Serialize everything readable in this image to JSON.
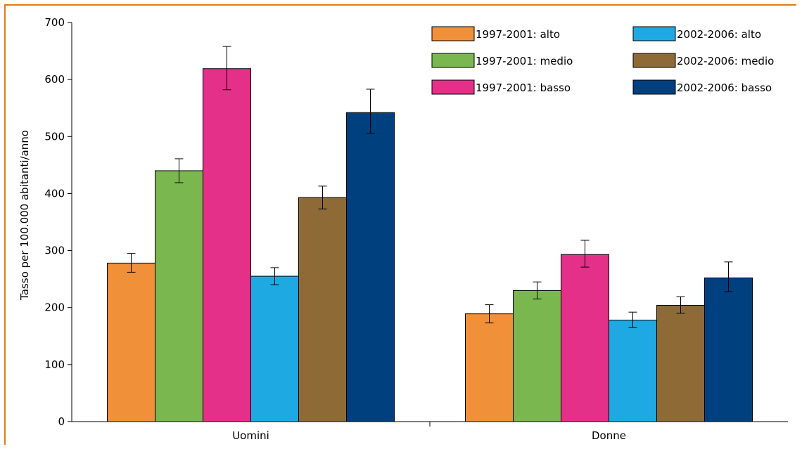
{
  "chart_data": {
    "type": "bar",
    "title": "",
    "xlabel": "",
    "ylabel": "Tasso per 100.000 abitanti/anno",
    "ylim": [
      0,
      700
    ],
    "yticks": [
      0,
      100,
      200,
      300,
      400,
      500,
      600,
      700
    ],
    "categories": [
      "Uomini",
      "Donne"
    ],
    "legend_position": "top-right",
    "grid": false,
    "series": [
      {
        "name": "1997-2001: alto",
        "color": "#f0913a",
        "values": [
          278,
          189
        ],
        "err_low": [
          262,
          173
        ],
        "err_high": [
          295,
          205
        ]
      },
      {
        "name": "1997-2001: medio",
        "color": "#7ab84f",
        "values": [
          440,
          230
        ],
        "err_low": [
          419,
          215
        ],
        "err_high": [
          461,
          245
        ]
      },
      {
        "name": "1997-2001: basso",
        "color": "#e5308a",
        "values": [
          619,
          293
        ],
        "err_low": [
          582,
          271
        ],
        "err_high": [
          658,
          318
        ]
      },
      {
        "name": "2002-2006: alto",
        "color": "#1fa9e3",
        "values": [
          255,
          178
        ],
        "err_low": [
          240,
          165
        ],
        "err_high": [
          270,
          192
        ]
      },
      {
        "name": "2002-2006: medio",
        "color": "#8e6a36",
        "values": [
          393,
          204
        ],
        "err_low": [
          373,
          190
        ],
        "err_high": [
          413,
          219
        ]
      },
      {
        "name": "2002-2006: basso",
        "color": "#00407e",
        "values": [
          542,
          252
        ],
        "err_low": [
          506,
          228
        ],
        "err_high": [
          583,
          280
        ]
      }
    ]
  }
}
